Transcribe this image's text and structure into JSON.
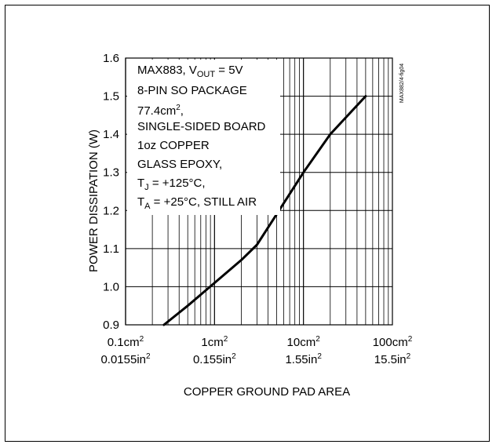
{
  "chart_data": {
    "type": "line",
    "title": "",
    "xlabel": "COPPER GROUND PAD AREA",
    "ylabel": "POWER DISSIPATION (W)",
    "x_scale": "log",
    "x_unit": "cm²",
    "xlim": [
      0.1,
      100
    ],
    "ylim": [
      0.9,
      1.6
    ],
    "grid": true,
    "y_ticks": [
      "0.9",
      "1.0",
      "1.1",
      "1.2",
      "1.3",
      "1.4",
      "1.5",
      "1.6"
    ],
    "x_ticks": [
      {
        "value": 0.1,
        "base": "0.1cm",
        "sub": "0.0155in"
      },
      {
        "value": 1,
        "base": "1cm",
        "sub": "0.155in"
      },
      {
        "value": 10,
        "base": "10cm",
        "sub": "1.55in"
      },
      {
        "value": 100,
        "base": "100cm",
        "sub": "15.5in"
      }
    ],
    "series": [
      {
        "x": [
          0.27,
          0.5,
          1.0,
          2.0,
          3.0,
          5.0,
          10.0,
          20.0,
          50.0
        ],
        "y": [
          0.9,
          0.95,
          1.01,
          1.07,
          1.11,
          1.19,
          1.3,
          1.4,
          1.5
        ]
      }
    ],
    "annotation": {
      "line1_prefix": "MAX883, V",
      "line1_sub": "OUT",
      "line1_suffix": " = 5V",
      "line2": "8-PIN SO PACKAGE",
      "line3_prefix": "77.4cm",
      "line3_sup": "2",
      "line3_suffix": ",",
      "line4": "SINGLE-SIDED BOARD",
      "line5": "1oz COPPER",
      "line6": "GLASS EPOXY,",
      "line7_prefix": "T",
      "line7_sub": "J",
      "line7_suffix": " = +125°C,",
      "line8_prefix": "T",
      "line8_sub": "A",
      "line8_suffix": " = +25°C, STILL AIR"
    },
    "side_id": "MAX882/4-fig04"
  }
}
